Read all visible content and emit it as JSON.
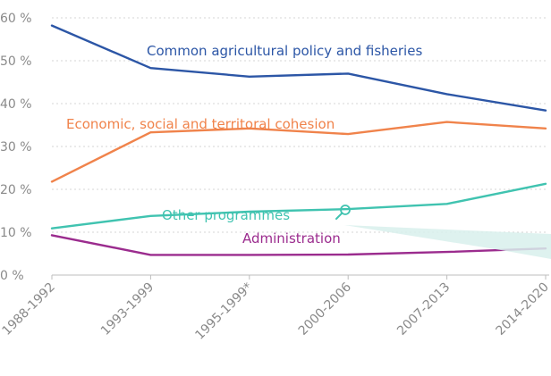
{
  "chart_data": {
    "type": "line",
    "x_categories": [
      "1988-1992",
      "1993-1999",
      "1995-1999*",
      "2000-2006",
      "2007-2013",
      "2014-2020"
    ],
    "yticks": [
      "0 %",
      "10 %",
      "20 %",
      "30 %",
      "40 %",
      "50 %",
      "60 %"
    ],
    "ylim": [
      0,
      60
    ],
    "grid": true,
    "series": [
      {
        "name": "Common agricultural policy and fisheries",
        "color": "#2c56a6",
        "values": [
          58.2,
          48.3,
          46.3,
          47.0,
          42.2,
          38.4
        ]
      },
      {
        "name": "Economic, social and territoral cohesion",
        "color": "#f0834b",
        "values": [
          21.8,
          33.3,
          34.2,
          32.9,
          35.7,
          34.2
        ]
      },
      {
        "name": "Other programmes",
        "color": "#40c3b0",
        "values": [
          10.9,
          13.8,
          14.8,
          15.4,
          16.6,
          21.3
        ]
      },
      {
        "name": "Administration",
        "color": "#9b2c8e",
        "values": [
          9.3,
          4.7,
          4.7,
          4.8,
          5.4,
          6.2
        ]
      }
    ]
  },
  "magnifier": {
    "icon": "magnifier-icon",
    "color": "#40c3b0"
  }
}
